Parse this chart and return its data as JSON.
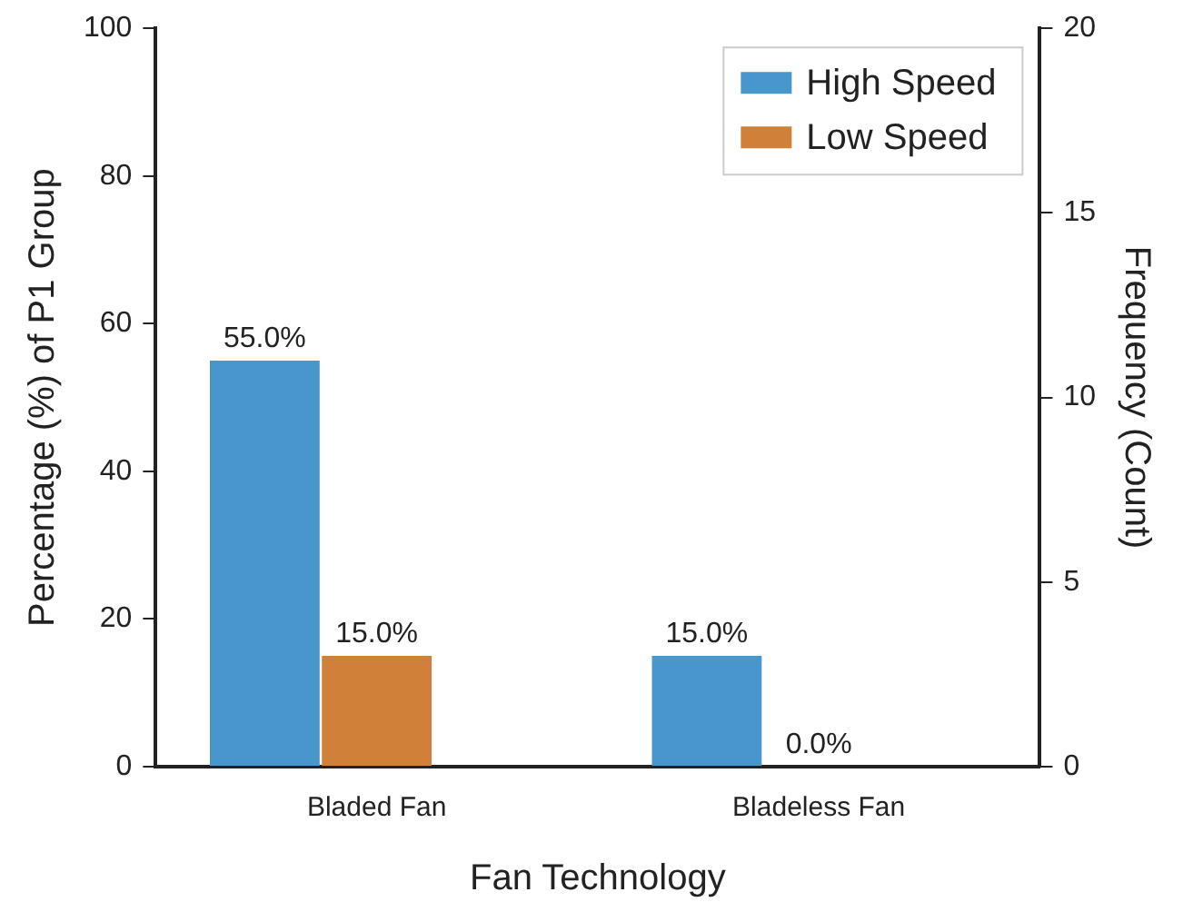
{
  "chart_data": {
    "type": "bar",
    "xlabel": "Fan Technology",
    "ylabel": "Percentage (%) of P1 Group",
    "y2label": "Frequency (Count)",
    "categories": [
      "Bladed Fan",
      "Bladeless Fan"
    ],
    "series": [
      {
        "name": "High Speed",
        "color": "#4896cc",
        "values": [
          55,
          15
        ],
        "value_labels": [
          "55.0%",
          "15.0%"
        ]
      },
      {
        "name": "Low Speed",
        "color": "#d08038",
        "values": [
          15,
          0
        ],
        "value_labels": [
          "15.0%",
          "0.0%"
        ]
      }
    ],
    "ylim": [
      0,
      100
    ],
    "yticks": [
      0,
      20,
      40,
      60,
      80,
      100
    ],
    "y2lim": [
      0,
      20
    ],
    "y2ticks": [
      0,
      5,
      10,
      15,
      20
    ],
    "grid": false,
    "legend": "top right"
  }
}
